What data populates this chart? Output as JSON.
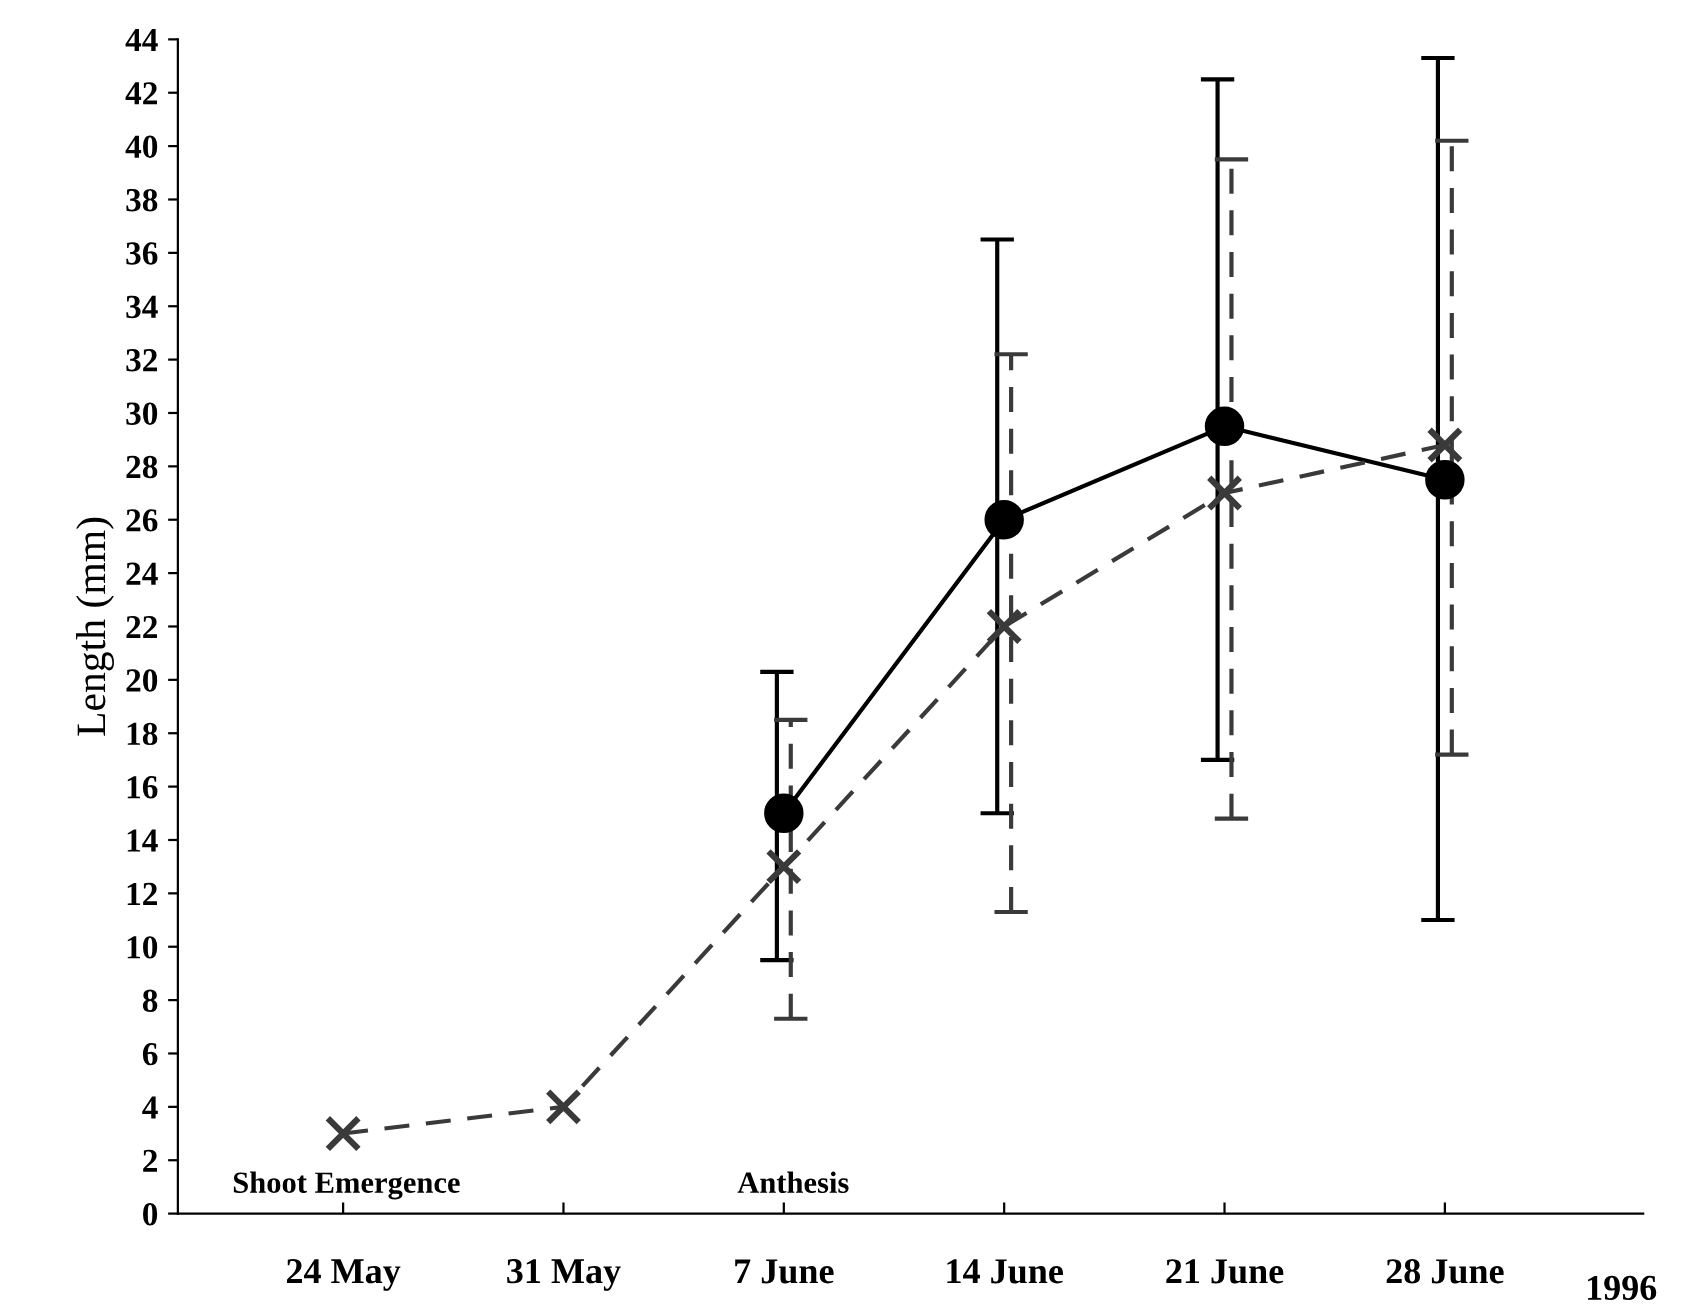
{
  "chart_data": {
    "type": "line",
    "ylabel": "Length (mm)",
    "xlabel": "1996",
    "categories": [
      "24 May",
      "31 May",
      "7 June",
      "14 June",
      "21 June",
      "28 June"
    ],
    "ylim": [
      0,
      44
    ],
    "yticks": [
      0,
      2,
      4,
      6,
      8,
      10,
      12,
      14,
      16,
      18,
      20,
      22,
      24,
      26,
      28,
      30,
      32,
      34,
      36,
      38,
      40,
      42,
      44
    ],
    "grid": false,
    "legend": false,
    "series": [
      {
        "color": "#000000",
        "marker": "circle",
        "line_style": "solid",
        "values": [
          null,
          null,
          15,
          26,
          29.5,
          27.5
        ],
        "errors": [
          null,
          null,
          [
            9.5,
            20.3
          ],
          [
            15,
            36.5
          ],
          [
            17,
            42.5
          ],
          [
            11,
            43.3
          ]
        ]
      },
      {
        "color": "#3a3a3a",
        "marker": "cross",
        "line_style": "dashed",
        "values": [
          3,
          4,
          13,
          22,
          27,
          28.8
        ],
        "errors": [
          null,
          null,
          [
            7.3,
            18.5
          ],
          [
            11.3,
            32.2
          ],
          [
            14.8,
            39.5
          ],
          [
            17.2,
            40.2
          ]
        ]
      }
    ],
    "annotations": [
      "Shoot Emergence",
      "Anthesis"
    ]
  }
}
